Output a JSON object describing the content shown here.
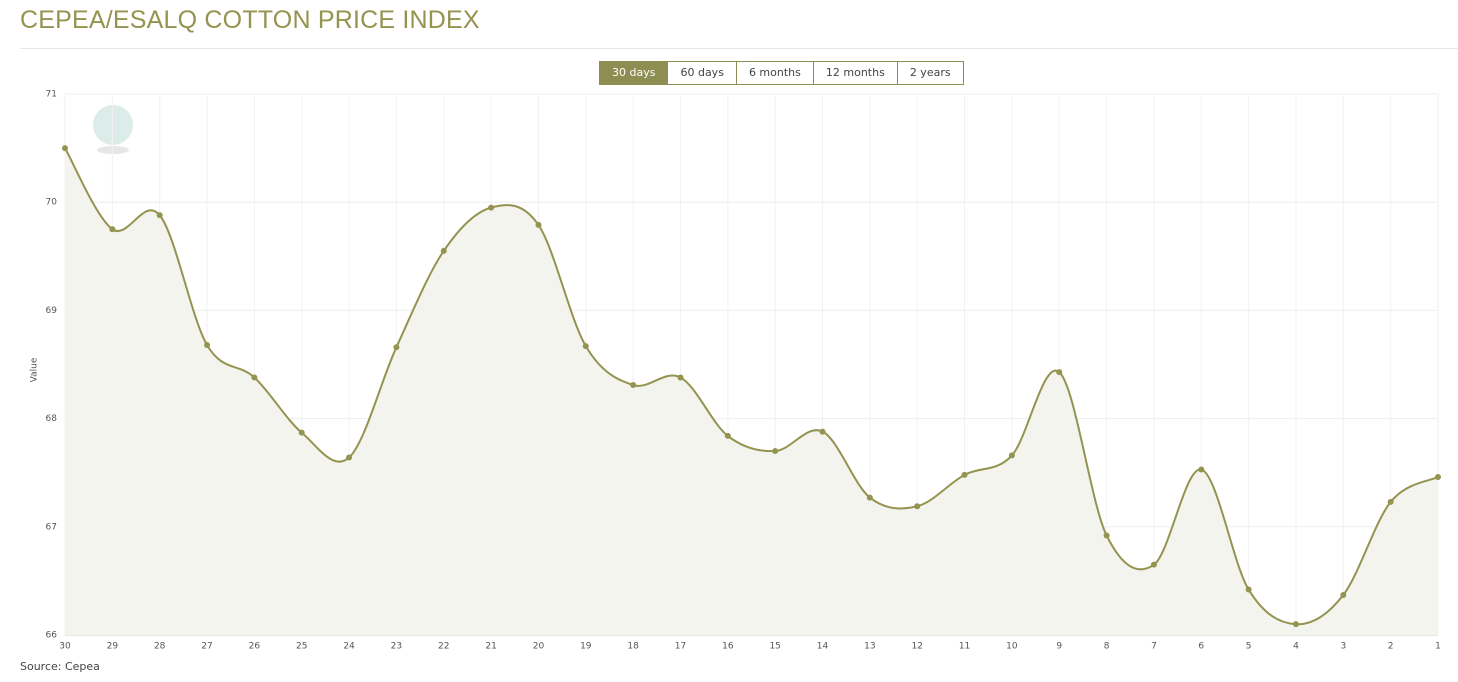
{
  "header": {
    "title": "CEPEA/ESALQ COTTON PRICE INDEX"
  },
  "range_buttons": [
    {
      "label": "30 days",
      "selected": true
    },
    {
      "label": "60 days",
      "selected": false
    },
    {
      "label": "6 months",
      "selected": false
    },
    {
      "label": "12 months",
      "selected": false
    },
    {
      "label": "2 years",
      "selected": false
    }
  ],
  "chart_data": {
    "type": "line",
    "ylabel": "Value",
    "categories": [
      "30",
      "29",
      "28",
      "27",
      "26",
      "25",
      "24",
      "23",
      "22",
      "21",
      "20",
      "19",
      "18",
      "17",
      "16",
      "15",
      "14",
      "13",
      "12",
      "11",
      "10",
      "9",
      "8",
      "7",
      "6",
      "5",
      "4",
      "3",
      "2",
      "1"
    ],
    "values": [
      70.5,
      69.75,
      69.88,
      68.68,
      68.38,
      67.87,
      67.64,
      68.66,
      69.55,
      69.95,
      69.79,
      68.67,
      68.31,
      68.38,
      67.84,
      67.7,
      67.88,
      67.27,
      67.19,
      67.48,
      67.66,
      68.43,
      66.92,
      66.65,
      67.53,
      66.42,
      66.1,
      66.37,
      67.23,
      67.46
    ],
    "color": "#94934f",
    "fill": "#f4f4ef",
    "ylim": [
      66,
      71
    ],
    "yticks": [
      66,
      67,
      68,
      69,
      70,
      71
    ],
    "grid": true
  },
  "source": "Source: Cepea"
}
